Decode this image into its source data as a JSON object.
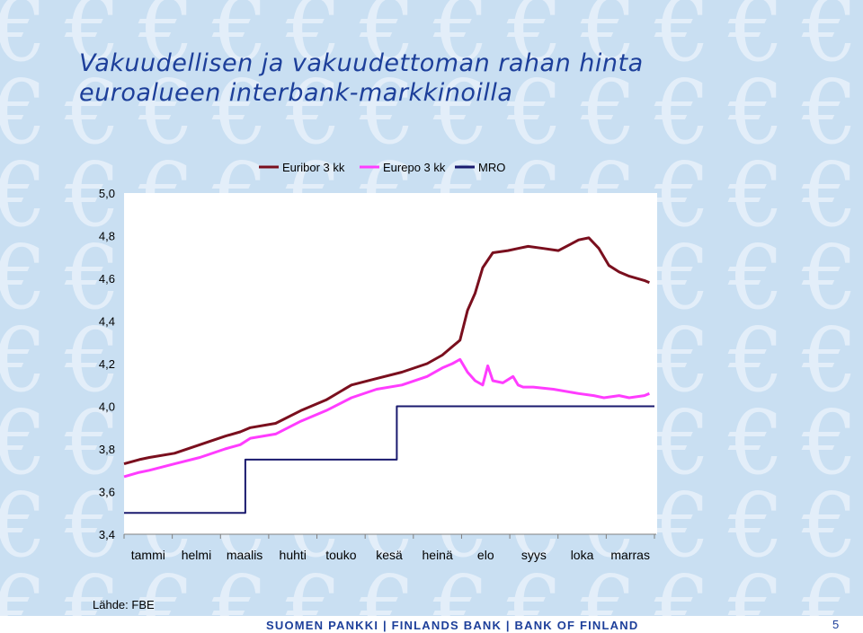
{
  "slide": {
    "title_line1": "Vakuudellisen ja vakuudettoman rahan hinta",
    "title_line2": "euroalueen interbank-markkinoilla",
    "source": "Lähde: FBE",
    "bank_name": "SUOMEN PANKKI | FINLANDS BANK | BANK OF FINLAND",
    "page_number": "5"
  },
  "colors": {
    "euribor": "#7a0f1e",
    "eurepo": "#ff3cff",
    "mro": "#1a1a6e",
    "title": "#1d3f9a",
    "axis": "#808080"
  },
  "chart_data": {
    "type": "line",
    "title": "",
    "xlabel": "",
    "ylabel": "",
    "ylim": [
      3.4,
      5.0
    ],
    "yticks": [
      "5,0",
      "4,8",
      "4,6",
      "4,4",
      "4,2",
      "4,0",
      "3,8",
      "3,6",
      "3,4"
    ],
    "ytick_values": [
      5.0,
      4.8,
      4.6,
      4.4,
      4.2,
      4.0,
      3.8,
      3.6,
      3.4
    ],
    "categories": [
      "tammi",
      "helmi",
      "maalis",
      "huhti",
      "touko",
      "kesä",
      "heinä",
      "elo",
      "syys",
      "loka",
      "marras"
    ],
    "xlim": [
      0,
      10.5
    ],
    "legend_position": "top",
    "grid": false,
    "series": [
      {
        "name": "Euribor 3 kk",
        "color_key": "euribor",
        "x": [
          0,
          0.3,
          0.5,
          1.0,
          1.5,
          2.0,
          2.3,
          2.5,
          3.0,
          3.5,
          4.0,
          4.5,
          5.0,
          5.5,
          6.0,
          6.3,
          6.5,
          6.65,
          6.8,
          6.95,
          7.1,
          7.3,
          7.6,
          7.8,
          8.0,
          8.3,
          8.6,
          9.0,
          9.2,
          9.4,
          9.6,
          9.8,
          10.0,
          10.3,
          10.4
        ],
        "y": [
          3.73,
          3.75,
          3.76,
          3.78,
          3.82,
          3.86,
          3.88,
          3.9,
          3.92,
          3.98,
          4.03,
          4.1,
          4.13,
          4.16,
          4.2,
          4.24,
          4.28,
          4.31,
          4.45,
          4.53,
          4.65,
          4.72,
          4.73,
          4.74,
          4.75,
          4.74,
          4.73,
          4.78,
          4.79,
          4.74,
          4.66,
          4.63,
          4.61,
          4.59,
          4.58
        ]
      },
      {
        "name": "Eurepo 3 kk",
        "color_key": "eurepo",
        "x": [
          0,
          0.3,
          0.5,
          1.0,
          1.5,
          2.0,
          2.3,
          2.5,
          3.0,
          3.5,
          4.0,
          4.5,
          5.0,
          5.5,
          6.0,
          6.3,
          6.5,
          6.65,
          6.8,
          6.95,
          7.1,
          7.2,
          7.3,
          7.5,
          7.7,
          7.8,
          7.9,
          8.1,
          8.5,
          9.0,
          9.3,
          9.5,
          9.8,
          10.0,
          10.3,
          10.4
        ],
        "y": [
          3.67,
          3.69,
          3.7,
          3.73,
          3.76,
          3.8,
          3.82,
          3.85,
          3.87,
          3.93,
          3.98,
          4.04,
          4.08,
          4.1,
          4.14,
          4.18,
          4.2,
          4.22,
          4.16,
          4.12,
          4.1,
          4.19,
          4.12,
          4.11,
          4.14,
          4.1,
          4.09,
          4.09,
          4.08,
          4.06,
          4.05,
          4.04,
          4.05,
          4.04,
          4.05,
          4.06
        ]
      },
      {
        "name": "MRO",
        "color_key": "mro",
        "step": true,
        "x": [
          0,
          2.4,
          2.4,
          5.4,
          5.4,
          10.5
        ],
        "y": [
          3.5,
          3.5,
          3.75,
          3.75,
          4.0,
          4.0
        ]
      }
    ]
  }
}
